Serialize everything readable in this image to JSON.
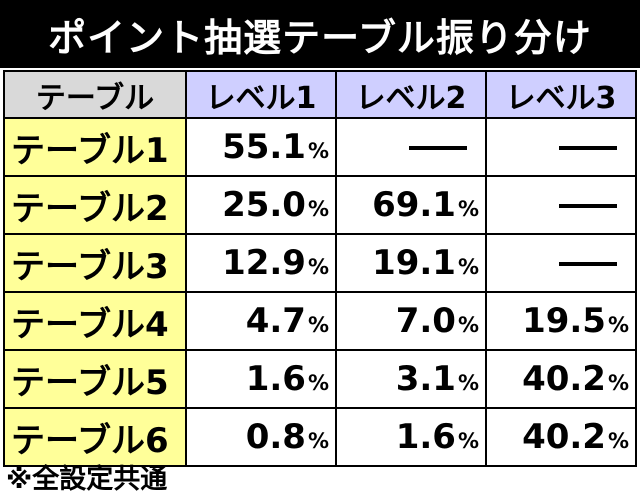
{
  "title": "ポイント抽選テーブル振り分け",
  "header": {
    "corner": "テーブル",
    "levels": [
      "レベル1",
      "レベル2",
      "レベル3"
    ]
  },
  "percent_sign": "%",
  "rows": [
    {
      "label": "テーブル1",
      "values": [
        "55.1",
        null,
        null
      ]
    },
    {
      "label": "テーブル2",
      "values": [
        "25.0",
        "69.1",
        null
      ]
    },
    {
      "label": "テーブル3",
      "values": [
        "12.9",
        "19.1",
        null
      ]
    },
    {
      "label": "テーブル4",
      "values": [
        "4.7",
        "7.0",
        "19.5"
      ]
    },
    {
      "label": "テーブル5",
      "values": [
        "1.6",
        "3.1",
        "40.2"
      ]
    },
    {
      "label": "テーブル6",
      "values": [
        "0.8",
        "1.6",
        "40.2"
      ]
    }
  ],
  "note": "※全設定共通"
}
